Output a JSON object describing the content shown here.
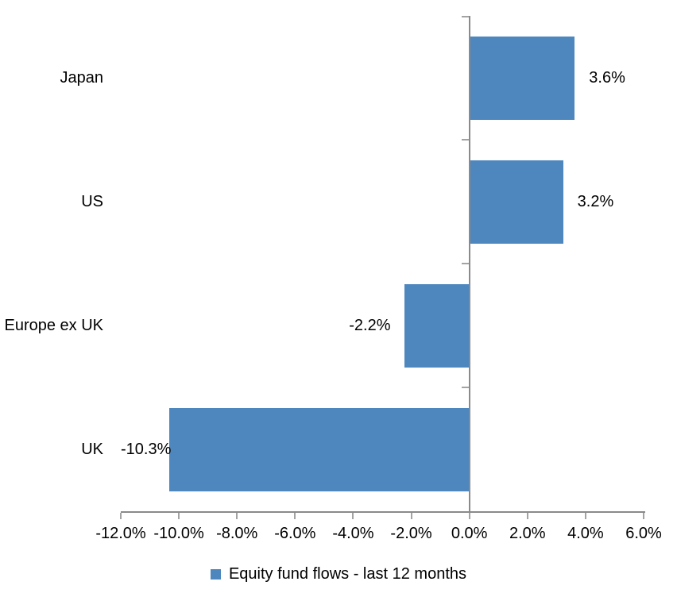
{
  "chart_data": {
    "type": "bar",
    "orientation": "horizontal",
    "categories": [
      "Japan",
      "US",
      "Europe ex UK",
      "UK"
    ],
    "series": [
      {
        "name": "Equity fund flows - last 12 months",
        "values": [
          3.6,
          3.2,
          -2.2,
          -10.3
        ]
      }
    ],
    "data_labels": [
      "3.6%",
      "3.2%",
      "-2.2%",
      "-10.3%"
    ],
    "title": "",
    "xlabel": "",
    "ylabel": "",
    "xlim": [
      -12,
      6
    ],
    "xticks": [
      -12,
      -10,
      -8,
      -6,
      -4,
      -2,
      0,
      2,
      4,
      6
    ],
    "xtick_labels": [
      "-12.0%",
      "-10.0%",
      "-8.0%",
      "-6.0%",
      "-4.0%",
      "-2.0%",
      "0.0%",
      "2.0%",
      "4.0%",
      "6.0%"
    ],
    "grid": false,
    "legend_position": "bottom",
    "colors": {
      "bar": "#4E87BE",
      "axis": "#8A8A8A",
      "tick": "#A3A3A3",
      "text": "#000000",
      "background": "#FFFFFF"
    }
  },
  "legend": {
    "label": "Equity fund flows - last 12 months"
  }
}
